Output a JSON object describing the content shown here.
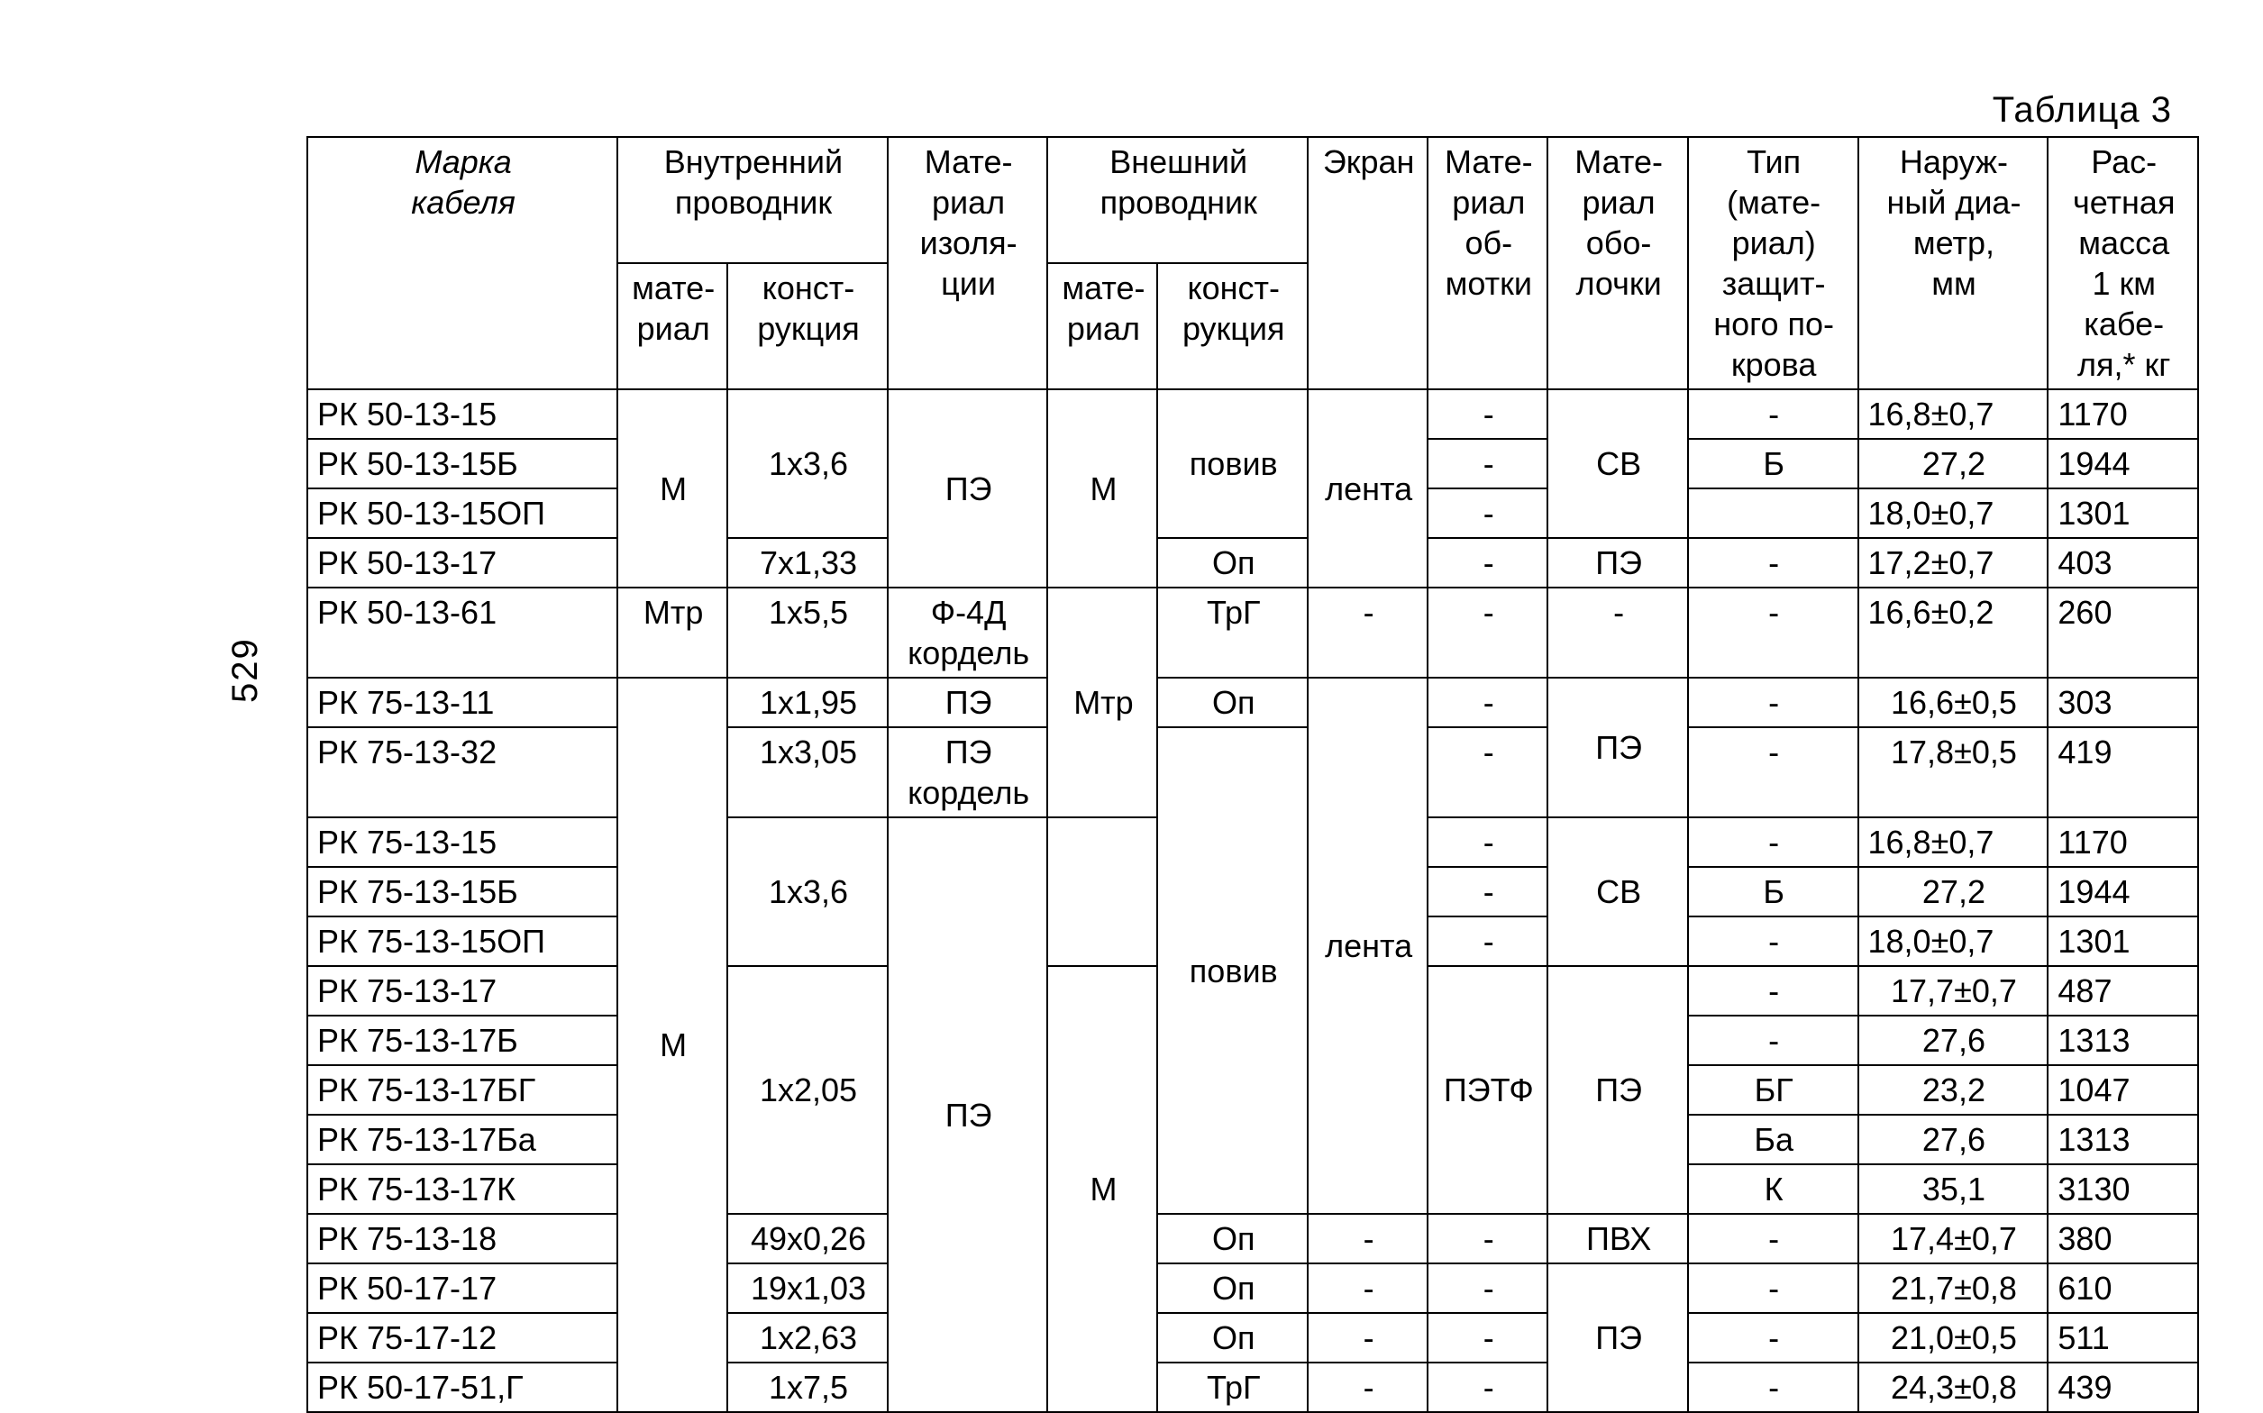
{
  "page_number": "529",
  "caption": "Таблица 3",
  "header": {
    "col0": "Марка\nкабеля",
    "grp_inner": "Внутренний\nпроводник",
    "col1": "мате-\nриал",
    "col2": "конст-\nрукция",
    "col3": "Мате-\nриал\nизоля-\nции",
    "grp_outer": "Внешний\nпроводник",
    "col4": "мате-\nриал",
    "col5": "конст-\nрукция",
    "col6": "Экран",
    "col7": "Мате-\nриал\nоб-\nмотки",
    "col8": "Мате-\nриал\nобо-\nлочки",
    "col9": "Тип\n(мате-\nриал)\nзащит-\nного по-\nкрова",
    "col10": "Наруж-\nный диа-\nметр,\nмм",
    "col11": "Рас-\nчетная\nмасса\n1 км\nкабе-\nля,* кг"
  },
  "body": {
    "r0": {
      "marka": "РК 50-13-15"
    },
    "r1": {
      "marka": "РК 50-13-15Б"
    },
    "r2": {
      "marka": "РК 50-13-15ОП"
    },
    "r3": {
      "marka": "РК 50-13-17"
    },
    "r4": {
      "marka": "РК 50-13-61"
    },
    "r5": {
      "marka": "РК 75-13-11"
    },
    "r6": {
      "marka": "РК 75-13-32"
    },
    "r7": {
      "marka": "РК 75-13-15"
    },
    "r8": {
      "marka": "РК 75-13-15Б"
    },
    "r9": {
      "marka": "РК 75-13-15ОП"
    },
    "r10": {
      "marka": "РК 75-13-17"
    },
    "r11": {
      "marka": "РК 75-13-17Б"
    },
    "r12": {
      "marka": "РК 75-13-17БГ"
    },
    "r13": {
      "marka": "РК 75-13-17Ба"
    },
    "r14": {
      "marka": "РК 75-13-17К"
    },
    "r15": {
      "marka": "РК 75-13-18"
    },
    "r16": {
      "marka": "РК 50-17-17"
    },
    "r17": {
      "marka": "РК 75-17-12"
    },
    "r18": {
      "marka": "РК 50-17-51,Г"
    },
    "inner_mat_M_1": "М",
    "inner_mat_Mtr": "Мтр",
    "inner_mat_M_2": "М",
    "konstr_1x36": "1x3,6",
    "konstr_7x133": "7x1,33",
    "konstr_1x55": "1x5,5",
    "konstr_1x195": "1x1,95",
    "konstr_1x305": "1x3,05",
    "konstr_1x36_b": "1x3,6",
    "konstr_1x205": "1x2,05",
    "konstr_49x026": "49x0,26",
    "konstr_19x103": "19x1,03",
    "konstr_1x263": "1x2,63",
    "konstr_1x75": "1x7,5",
    "izol_PE_1": "ПЭ",
    "izol_F4D": "Ф-4Д\nкордель",
    "izol_PE_11": "ПЭ",
    "izol_PE_kord": "ПЭ\nкордель",
    "izol_PE_big": "ПЭ",
    "outer_mat_M_1": "М",
    "outer_mat_Mtr": "Мтр",
    "outer_mat_M_2": "М",
    "outer_kon_poviv_1": "повив",
    "outer_kon_Op_1": "Оп",
    "outer_kon_TrG_1": "ТрГ",
    "outer_kon_Op_11": "Оп",
    "outer_kon_poviv_2": "повив",
    "outer_kon_Op_15": "Оп",
    "outer_kon_Op_16": "Оп",
    "outer_kon_Op_17": "Оп",
    "outer_kon_TrG_18": "ТрГ",
    "ekran_lenta_1": "лента",
    "ekran_lenta_2": "лента",
    "obolochka_SV_1": "СВ",
    "obolochka_PE_3": "ПЭ",
    "obolochka_PE_56": "ПЭ",
    "obolochka_SV_2": "СВ",
    "obolochka_PE_big": "ПЭ",
    "obolochka_PVH": "ПВХ",
    "obolochka_PE_last": "ПЭ",
    "obmotka_PETF": "ПЭТФ",
    "pokrov_B_1": "Б",
    "pokrov_B_2": "Б",
    "pokrov_BG": "БГ",
    "pokrov_Ba": "Ба",
    "pokrov_K": "К",
    "diam": {
      "r0": "16,8±0,7",
      "r1": "27,2",
      "r2": "18,0±0,7",
      "r3": "17,2±0,7",
      "r4": "16,6±0,2",
      "r5": "16,6±0,5",
      "r6": "17,8±0,5",
      "r7": "16,8±0,7",
      "r8": "27,2",
      "r9": "18,0±0,7",
      "r10": "17,7±0,7",
      "r11": "27,6",
      "r12": "23,2",
      "r13": "27,6",
      "r14": "35,1",
      "r15": "17,4±0,7",
      "r16": "21,7±0,8",
      "r17": "21,0±0,5",
      "r18": "24,3±0,8"
    },
    "mass": {
      "r0": "1170",
      "r1": "1944",
      "r2": "1301",
      "r3": "403",
      "r4": "260",
      "r5": "303",
      "r6": "419",
      "r7": "1170",
      "r8": "1944",
      "r9": "1301",
      "r10": "487",
      "r11": "1313",
      "r12": "1047",
      "r13": "1313",
      "r14": "3130",
      "r15": "380",
      "r16": "610",
      "r17": "511",
      "r18": "439"
    },
    "dash": "-"
  }
}
